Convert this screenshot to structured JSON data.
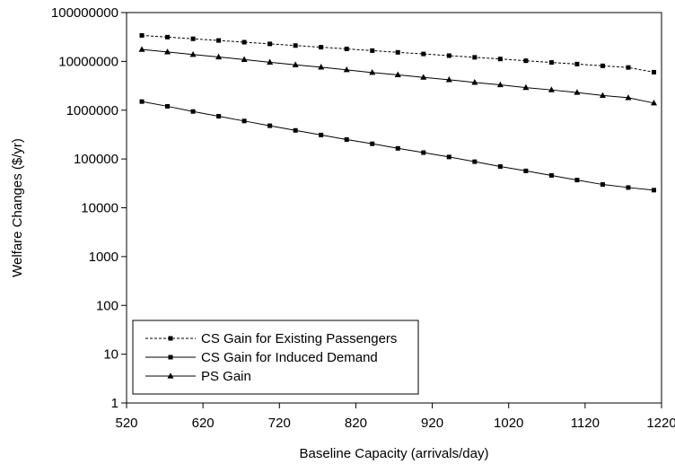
{
  "chart_data": {
    "type": "line",
    "title": "",
    "xlabel": "Baseline Capacity (arrivals/day)",
    "ylabel": "Welfare Changes ($/yr)",
    "xlim": [
      520,
      1220
    ],
    "ylim": [
      1,
      100000000
    ],
    "yscale": "log",
    "x_ticks": [
      520,
      620,
      720,
      820,
      920,
      1020,
      1120,
      1220
    ],
    "y_ticks": [
      1,
      10,
      100,
      1000,
      10000,
      100000,
      1000000,
      10000000,
      100000000
    ],
    "y_tick_labels": [
      "1",
      "10",
      "100",
      "1000",
      "10000",
      "100000",
      "1000000",
      "10000000",
      "100000000"
    ],
    "grid": false,
    "legend_position": "bottom-left",
    "x": [
      540,
      573.5,
      607,
      640.5,
      674,
      707.5,
      741,
      774.5,
      808,
      841.5,
      875,
      908.5,
      942,
      975.5,
      1009,
      1042.5,
      1076,
      1109.5,
      1143,
      1176.5,
      1210
    ],
    "series": [
      {
        "name": "CS Gain for Existing Passengers",
        "line_style": "dashed",
        "marker": "square",
        "color": "#000000",
        "values": [
          34000000,
          31400000,
          29000000,
          26800000,
          24700000,
          22800000,
          21100000,
          19500000,
          18000000,
          16600000,
          15300000,
          14200000,
          13100000,
          12100000,
          11200000,
          10300000,
          9500000,
          8800000,
          8100000,
          7500000,
          6000000
        ]
      },
      {
        "name": "CS Gain for Induced Demand",
        "line_style": "solid",
        "marker": "square",
        "color": "#000000",
        "values": [
          1500000,
          1200000,
          940000,
          750000,
          600000,
          480000,
          385000,
          310000,
          250000,
          205000,
          165000,
          135000,
          110000,
          88000,
          70000,
          57000,
          46000,
          37000,
          30000,
          26000,
          23000
        ]
      },
      {
        "name": "PS Gain",
        "line_style": "solid",
        "marker": "triangle",
        "color": "#000000",
        "values": [
          17500000,
          15600000,
          13800000,
          12300000,
          10900000,
          9600000,
          8500000,
          7600000,
          6700000,
          5900000,
          5300000,
          4700000,
          4200000,
          3700000,
          3300000,
          2900000,
          2600000,
          2300000,
          2000000,
          1800000,
          1400000
        ]
      }
    ]
  }
}
